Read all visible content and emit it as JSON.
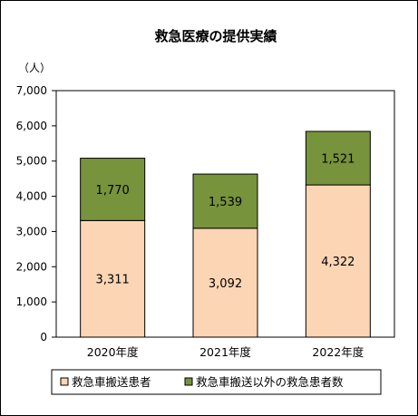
{
  "chart_data": {
    "type": "bar",
    "stacked": true,
    "title": "救急医療の提供実績",
    "ylabel": "（人）",
    "categories": [
      "2020年度",
      "2021年度",
      "2022年度"
    ],
    "ylim": [
      0,
      7000
    ],
    "yticks": [
      "0",
      "1,000",
      "2,000",
      "3,000",
      "4,000",
      "5,000",
      "6,000",
      "7,000"
    ],
    "ytick_values": [
      0,
      1000,
      2000,
      3000,
      4000,
      5000,
      6000,
      7000
    ],
    "grid": false,
    "legend_position": "bottom",
    "series": [
      {
        "name": "救急車搬送患者",
        "values": [
          3311,
          3092,
          4322
        ],
        "labels": [
          "3,311",
          "3,092",
          "4,322"
        ],
        "color": "#FCD5B5"
      },
      {
        "name": "救急車搬送以外の救急患者数",
        "values": [
          1770,
          1539,
          1521
        ],
        "labels": [
          "1,770",
          "1,539",
          "1,521"
        ],
        "color": "#77933C"
      }
    ]
  }
}
